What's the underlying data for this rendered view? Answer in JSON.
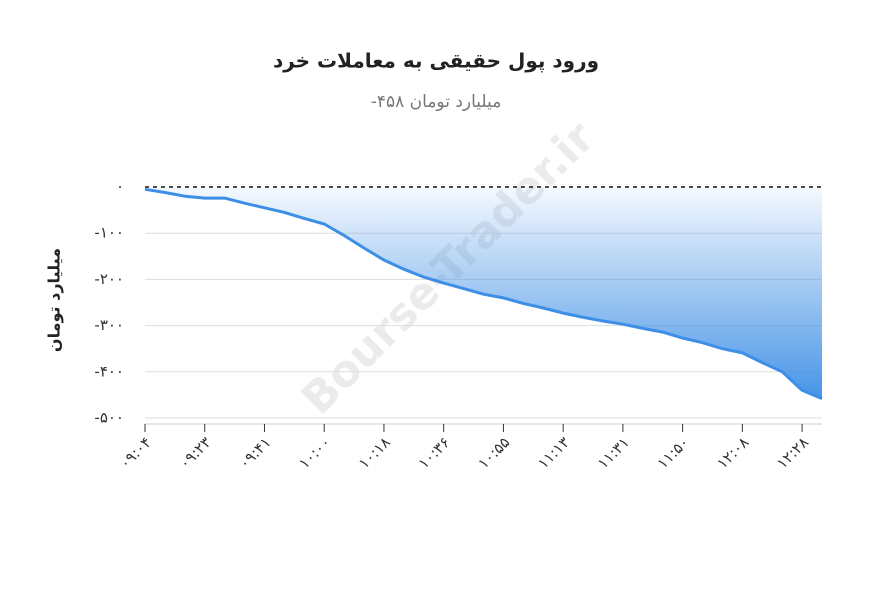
{
  "chart_data": {
    "type": "area",
    "title": "ورود پول حقیقی به معاملات خرد",
    "subtitle": "میلیارد تومان ۴۵۸-",
    "y_label": "میلیارد تومان",
    "watermark": "Bourse-Trader.ir",
    "color": "#3d8ee6",
    "categories": [
      "۰۹:۰۴",
      null,
      null,
      "۰۹:۲۳",
      null,
      null,
      "۰۹:۴۱",
      null,
      null,
      "۱۰:۰۰",
      null,
      null,
      "۱۰:۱۸",
      null,
      null,
      "۱۰:۳۶",
      null,
      null,
      "۱۰:۵۵",
      null,
      null,
      "۱۱:۱۳",
      null,
      null,
      "۱۱:۳۱",
      null,
      null,
      "۱۱:۵۰",
      null,
      null,
      "۱۲:۰۸",
      null,
      null,
      "۱۲:۲۸",
      null
    ],
    "values": [
      -5,
      -12,
      -20,
      -24,
      -24,
      -35,
      -45,
      -55,
      -68,
      -80,
      -105,
      -132,
      -158,
      -178,
      -195,
      -208,
      -220,
      -232,
      -240,
      -252,
      -262,
      -273,
      -282,
      -290,
      -297,
      -306,
      -314,
      -327,
      -337,
      -350,
      -359,
      -380,
      -400,
      -440,
      -458
    ],
    "ylim": [
      -500,
      0
    ],
    "yticks": [
      {
        "value": -500,
        "label": "-۵۰۰"
      },
      {
        "value": -400,
        "label": "-۴۰۰"
      },
      {
        "value": -300,
        "label": "-۳۰۰"
      },
      {
        "value": -200,
        "label": "-۲۰۰"
      },
      {
        "value": -100,
        "label": "-۱۰۰"
      },
      {
        "value": 0,
        "label": "۰"
      }
    ],
    "grid": true
  }
}
